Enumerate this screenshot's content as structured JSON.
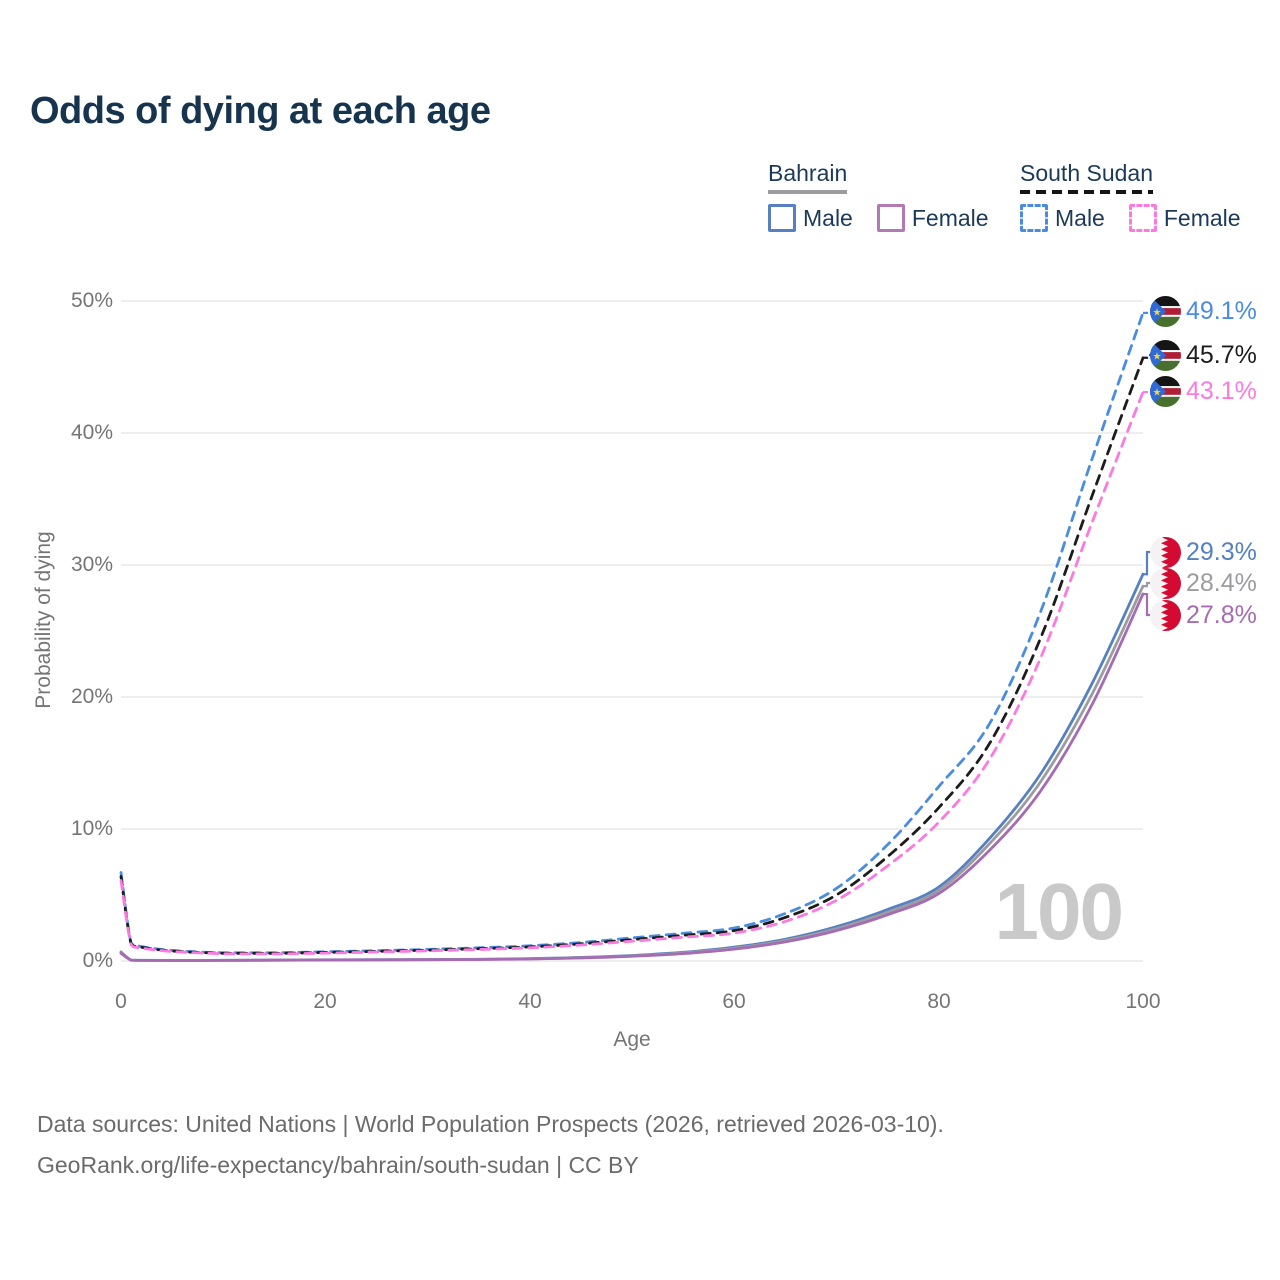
{
  "title": "Odds of dying at each age",
  "legend": {
    "groups": [
      {
        "label": "Bahrain",
        "rule_style": "solid",
        "rule_color": "#9c9ca0",
        "items": [
          {
            "label": "Male",
            "swatch_color": "#5580c1",
            "swatch_style": "solid"
          },
          {
            "label": "Female",
            "swatch_color": "#b279b2",
            "swatch_style": "solid"
          }
        ]
      },
      {
        "label": "South Sudan",
        "rule_style": "dashed",
        "rule_color": "#141414",
        "items": [
          {
            "label": "Male",
            "swatch_color": "#4a8ce0",
            "swatch_style": "dashed"
          },
          {
            "label": "Female",
            "swatch_color": "#fb7ae0",
            "swatch_style": "dashed"
          }
        ]
      }
    ]
  },
  "chart_data": {
    "type": "line",
    "title": "Odds of dying at each age",
    "xlabel": "Age",
    "ylabel": "Probability of dying",
    "xlim": [
      0,
      100
    ],
    "ylim": [
      0,
      50
    ],
    "grid": "horizontal",
    "legend_position": "top-right",
    "watermark": "100",
    "x_tick_values": [
      0,
      20,
      40,
      60,
      80,
      100
    ],
    "x_tick_labels": [
      "0",
      "20",
      "40",
      "60",
      "80",
      "100"
    ],
    "y_tick_values": [
      0,
      10,
      20,
      30,
      40,
      50
    ],
    "y_tick_labels": [
      "0%",
      "10%",
      "20%",
      "30%",
      "40%",
      "50%"
    ],
    "x": [
      0,
      1,
      2,
      5,
      10,
      15,
      20,
      25,
      30,
      35,
      40,
      45,
      50,
      55,
      60,
      65,
      70,
      75,
      80,
      85,
      90,
      95,
      100
    ],
    "series": [
      {
        "name": "South Sudan Male",
        "country": "South Sudan",
        "style": "dashed",
        "color": "#4a8ce0",
        "end_label": "49.1%",
        "end_value": 49.1,
        "values": [
          6.7,
          1.35,
          1.1,
          0.8,
          0.62,
          0.62,
          0.7,
          0.78,
          0.88,
          1.0,
          1.15,
          1.4,
          1.75,
          2.1,
          2.5,
          3.6,
          5.5,
          8.8,
          13.2,
          18.0,
          26.5,
          38.0,
          49.1
        ]
      },
      {
        "name": "South Sudan Both sexes",
        "country": "South Sudan",
        "style": "dashed",
        "color": "#1c1c1c",
        "end_label": "45.7%",
        "end_value": 45.7,
        "values": [
          6.4,
          1.28,
          1.04,
          0.76,
          0.58,
          0.58,
          0.65,
          0.73,
          0.82,
          0.93,
          1.07,
          1.3,
          1.62,
          1.95,
          2.3,
          3.3,
          5.0,
          7.9,
          11.6,
          16.5,
          24.5,
          35.2,
          45.7
        ]
      },
      {
        "name": "South Sudan Female",
        "country": "South Sudan",
        "style": "dashed",
        "color": "#fb7ae0",
        "end_label": "43.1%",
        "end_value": 43.1,
        "values": [
          6.1,
          1.22,
          0.98,
          0.72,
          0.55,
          0.54,
          0.6,
          0.68,
          0.77,
          0.87,
          1.0,
          1.21,
          1.5,
          1.8,
          2.12,
          3.0,
          4.6,
          7.2,
          10.5,
          15.3,
          23.0,
          33.2,
          43.1
        ]
      },
      {
        "name": "Bahrain Male",
        "country": "Bahrain",
        "style": "solid",
        "color": "#5580c1",
        "end_label": "29.3%",
        "end_value": 29.3,
        "values": [
          0.68,
          0.07,
          0.05,
          0.042,
          0.05,
          0.07,
          0.09,
          0.1,
          0.11,
          0.13,
          0.18,
          0.27,
          0.42,
          0.66,
          1.05,
          1.65,
          2.6,
          3.9,
          5.6,
          9.3,
          14.2,
          21.0,
          29.3
        ]
      },
      {
        "name": "Bahrain Both sexes",
        "country": "Bahrain",
        "style": "solid",
        "color": "#9c9ca0",
        "end_label": "28.4%",
        "end_value": 28.4,
        "values": [
          0.63,
          0.065,
          0.047,
          0.04,
          0.046,
          0.063,
          0.082,
          0.092,
          0.102,
          0.122,
          0.168,
          0.25,
          0.39,
          0.61,
          0.97,
          1.55,
          2.45,
          3.7,
          5.35,
          8.9,
          13.6,
          20.2,
          28.4
        ]
      },
      {
        "name": "Bahrain Female",
        "country": "Bahrain",
        "style": "solid",
        "color": "#a56cb4",
        "end_label": "27.8%",
        "end_value": 27.8,
        "values": [
          0.58,
          0.06,
          0.044,
          0.037,
          0.043,
          0.058,
          0.075,
          0.085,
          0.095,
          0.113,
          0.155,
          0.23,
          0.36,
          0.56,
          0.9,
          1.45,
          2.3,
          3.5,
          5.1,
          8.4,
          12.9,
          19.4,
          27.8
        ]
      }
    ]
  },
  "footer": {
    "line1": "Data sources: United Nations | World Population Prospects (2026, retrieved 2026-03-10).",
    "line2": "GeoRank.org/life-expectancy/bahrain/south-sudan | CC BY"
  }
}
